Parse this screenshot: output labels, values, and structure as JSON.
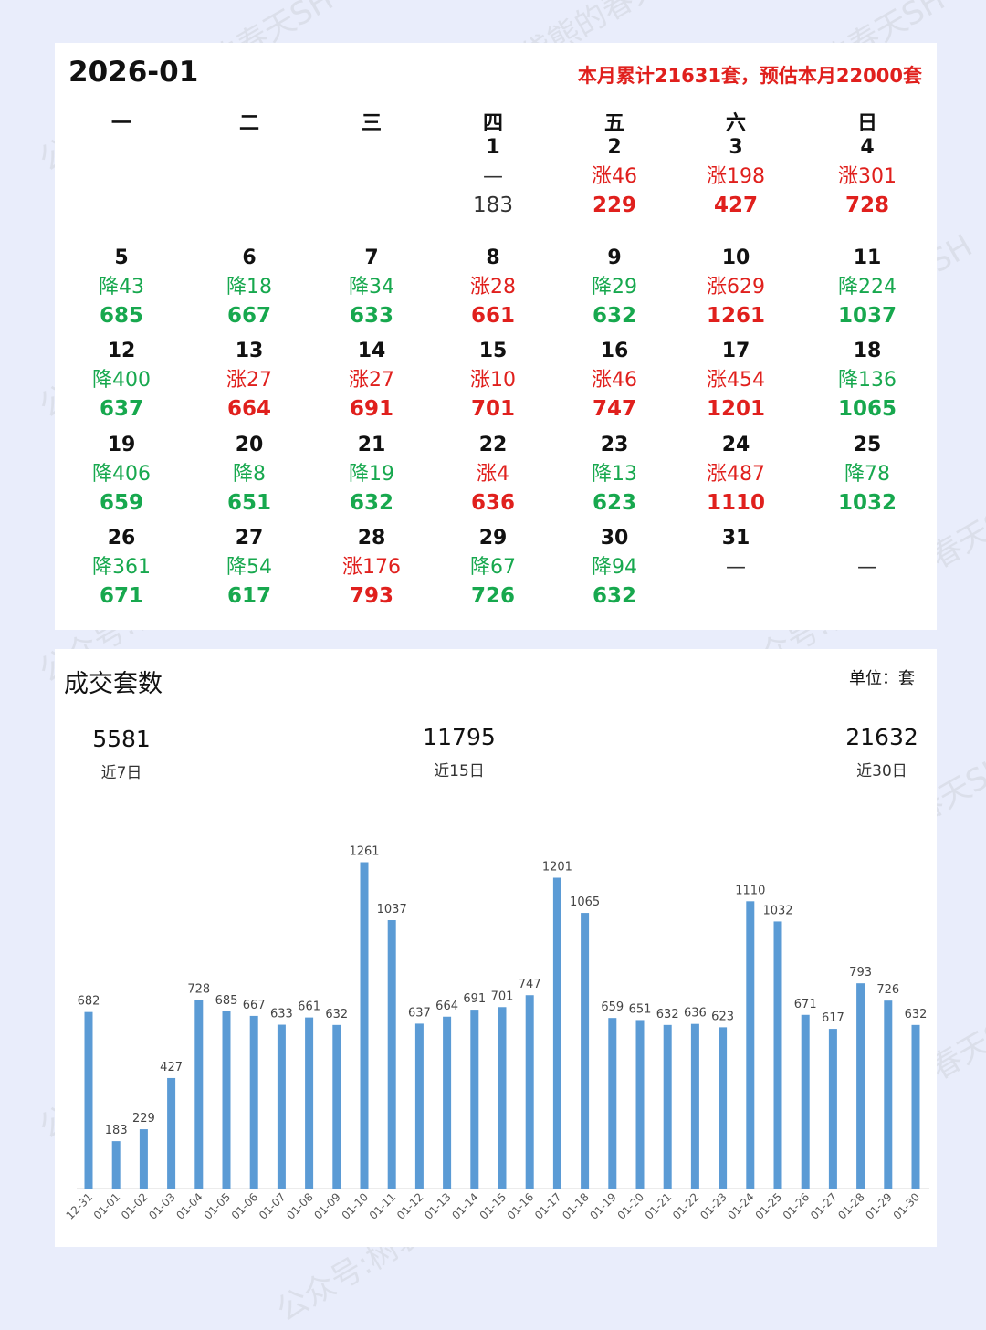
{
  "calendar": {
    "month": "2026-01",
    "summary": "本月累计21631套，预估本月22000套",
    "weekdays": [
      "一",
      "二",
      "三",
      "四",
      "五",
      "六",
      "日"
    ],
    "days": [
      {
        "day": "1",
        "change": "—",
        "value": "183",
        "trend": "none"
      },
      {
        "day": "2",
        "change": "涨46",
        "value": "229",
        "trend": "up"
      },
      {
        "day": "3",
        "change": "涨198",
        "value": "427",
        "trend": "up"
      },
      {
        "day": "4",
        "change": "涨301",
        "value": "728",
        "trend": "up"
      },
      {
        "day": "5",
        "change": "降43",
        "value": "685",
        "trend": "down"
      },
      {
        "day": "6",
        "change": "降18",
        "value": "667",
        "trend": "down"
      },
      {
        "day": "7",
        "change": "降34",
        "value": "633",
        "trend": "down"
      },
      {
        "day": "8",
        "change": "涨28",
        "value": "661",
        "trend": "up"
      },
      {
        "day": "9",
        "change": "降29",
        "value": "632",
        "trend": "down"
      },
      {
        "day": "10",
        "change": "涨629",
        "value": "1261",
        "trend": "up"
      },
      {
        "day": "11",
        "change": "降224",
        "value": "1037",
        "trend": "down"
      },
      {
        "day": "12",
        "change": "降400",
        "value": "637",
        "trend": "down"
      },
      {
        "day": "13",
        "change": "涨27",
        "value": "664",
        "trend": "up"
      },
      {
        "day": "14",
        "change": "涨27",
        "value": "691",
        "trend": "up"
      },
      {
        "day": "15",
        "change": "涨10",
        "value": "701",
        "trend": "up"
      },
      {
        "day": "16",
        "change": "涨46",
        "value": "747",
        "trend": "up"
      },
      {
        "day": "17",
        "change": "涨454",
        "value": "1201",
        "trend": "up"
      },
      {
        "day": "18",
        "change": "降136",
        "value": "1065",
        "trend": "down"
      },
      {
        "day": "19",
        "change": "降406",
        "value": "659",
        "trend": "down"
      },
      {
        "day": "20",
        "change": "降8",
        "value": "651",
        "trend": "down"
      },
      {
        "day": "21",
        "change": "降19",
        "value": "632",
        "trend": "down"
      },
      {
        "day": "22",
        "change": "涨4",
        "value": "636",
        "trend": "up"
      },
      {
        "day": "23",
        "change": "降13",
        "value": "623",
        "trend": "down"
      },
      {
        "day": "24",
        "change": "涨487",
        "value": "1110",
        "trend": "up"
      },
      {
        "day": "25",
        "change": "降78",
        "value": "1032",
        "trend": "down"
      },
      {
        "day": "26",
        "change": "降361",
        "value": "671",
        "trend": "down"
      },
      {
        "day": "27",
        "change": "降54",
        "value": "617",
        "trend": "down"
      },
      {
        "day": "28",
        "change": "涨176",
        "value": "793",
        "trend": "up"
      },
      {
        "day": "29",
        "change": "降67",
        "value": "726",
        "trend": "down"
      },
      {
        "day": "30",
        "change": "降94",
        "value": "632",
        "trend": "down"
      },
      {
        "day": "31",
        "change": "—",
        "value": "",
        "trend": "none"
      }
    ],
    "trailing_blank": {
      "change": "—"
    }
  },
  "chart_panel": {
    "title": "成交套数",
    "unit": "单位：套",
    "stats": [
      {
        "value": "5581",
        "label": "近7日"
      },
      {
        "value": "11795",
        "label": "近15日"
      },
      {
        "value": "21632",
        "label": "近30日"
      }
    ]
  },
  "chart_data": {
    "type": "bar",
    "title": "成交套数",
    "ylim": [
      0,
      1400
    ],
    "categories": [
      "12-31",
      "01-01",
      "01-02",
      "01-03",
      "01-04",
      "01-05",
      "01-06",
      "01-07",
      "01-08",
      "01-09",
      "01-10",
      "01-11",
      "01-12",
      "01-13",
      "01-14",
      "01-15",
      "01-16",
      "01-17",
      "01-18",
      "01-19",
      "01-20",
      "01-21",
      "01-22",
      "01-23",
      "01-24",
      "01-25",
      "01-26",
      "01-27",
      "01-28",
      "01-29",
      "01-30"
    ],
    "values": [
      682,
      183,
      229,
      427,
      728,
      685,
      667,
      633,
      661,
      632,
      1261,
      1037,
      637,
      664,
      691,
      701,
      747,
      1201,
      1065,
      659,
      651,
      632,
      636,
      623,
      1110,
      1032,
      671,
      617,
      793,
      726,
      632
    ],
    "bar_color": "#5b9bd5"
  },
  "colors": {
    "up": "#e0201d",
    "down": "#17a84e",
    "bar": "#5b9bd5"
  },
  "watermark": "公众号:树袋熊的春天SH"
}
